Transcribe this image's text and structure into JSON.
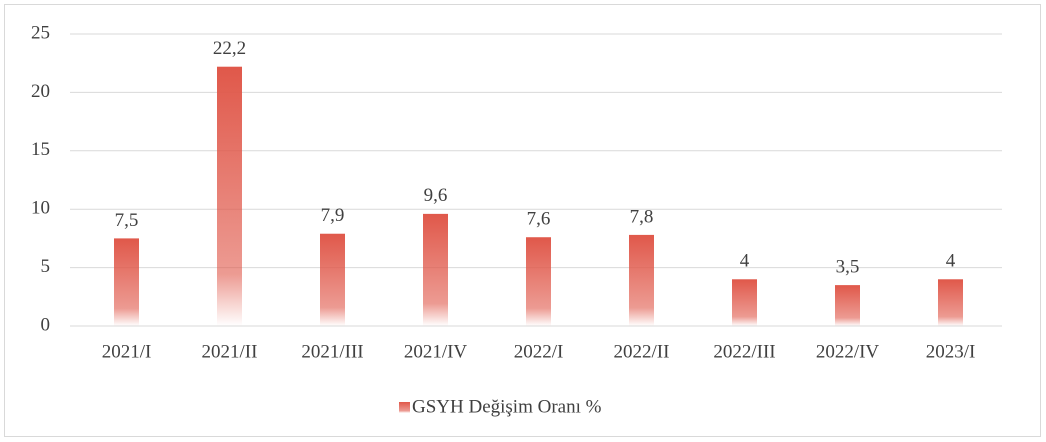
{
  "chart_data": {
    "type": "bar",
    "categories": [
      "2021/I",
      "2021/II",
      "2021/III",
      "2021/IV",
      "2022/I",
      "2022/II",
      "2022/III",
      "2022/IV",
      "2023/I"
    ],
    "series": [
      {
        "name": "GSYH Değişim Oranı %",
        "color": "#e0584a",
        "values": [
          7.5,
          22.2,
          7.9,
          9.6,
          7.6,
          7.8,
          4,
          3.5,
          4
        ],
        "value_labels": [
          "7,5",
          "22,2",
          "7,9",
          "9,6",
          "7,6",
          "7,8",
          "4",
          "3,5",
          "4"
        ]
      }
    ],
    "ylim": [
      0,
      25
    ],
    "yticks": [
      0,
      5,
      10,
      15,
      20,
      25
    ],
    "grid": true,
    "legend": "bottom"
  }
}
